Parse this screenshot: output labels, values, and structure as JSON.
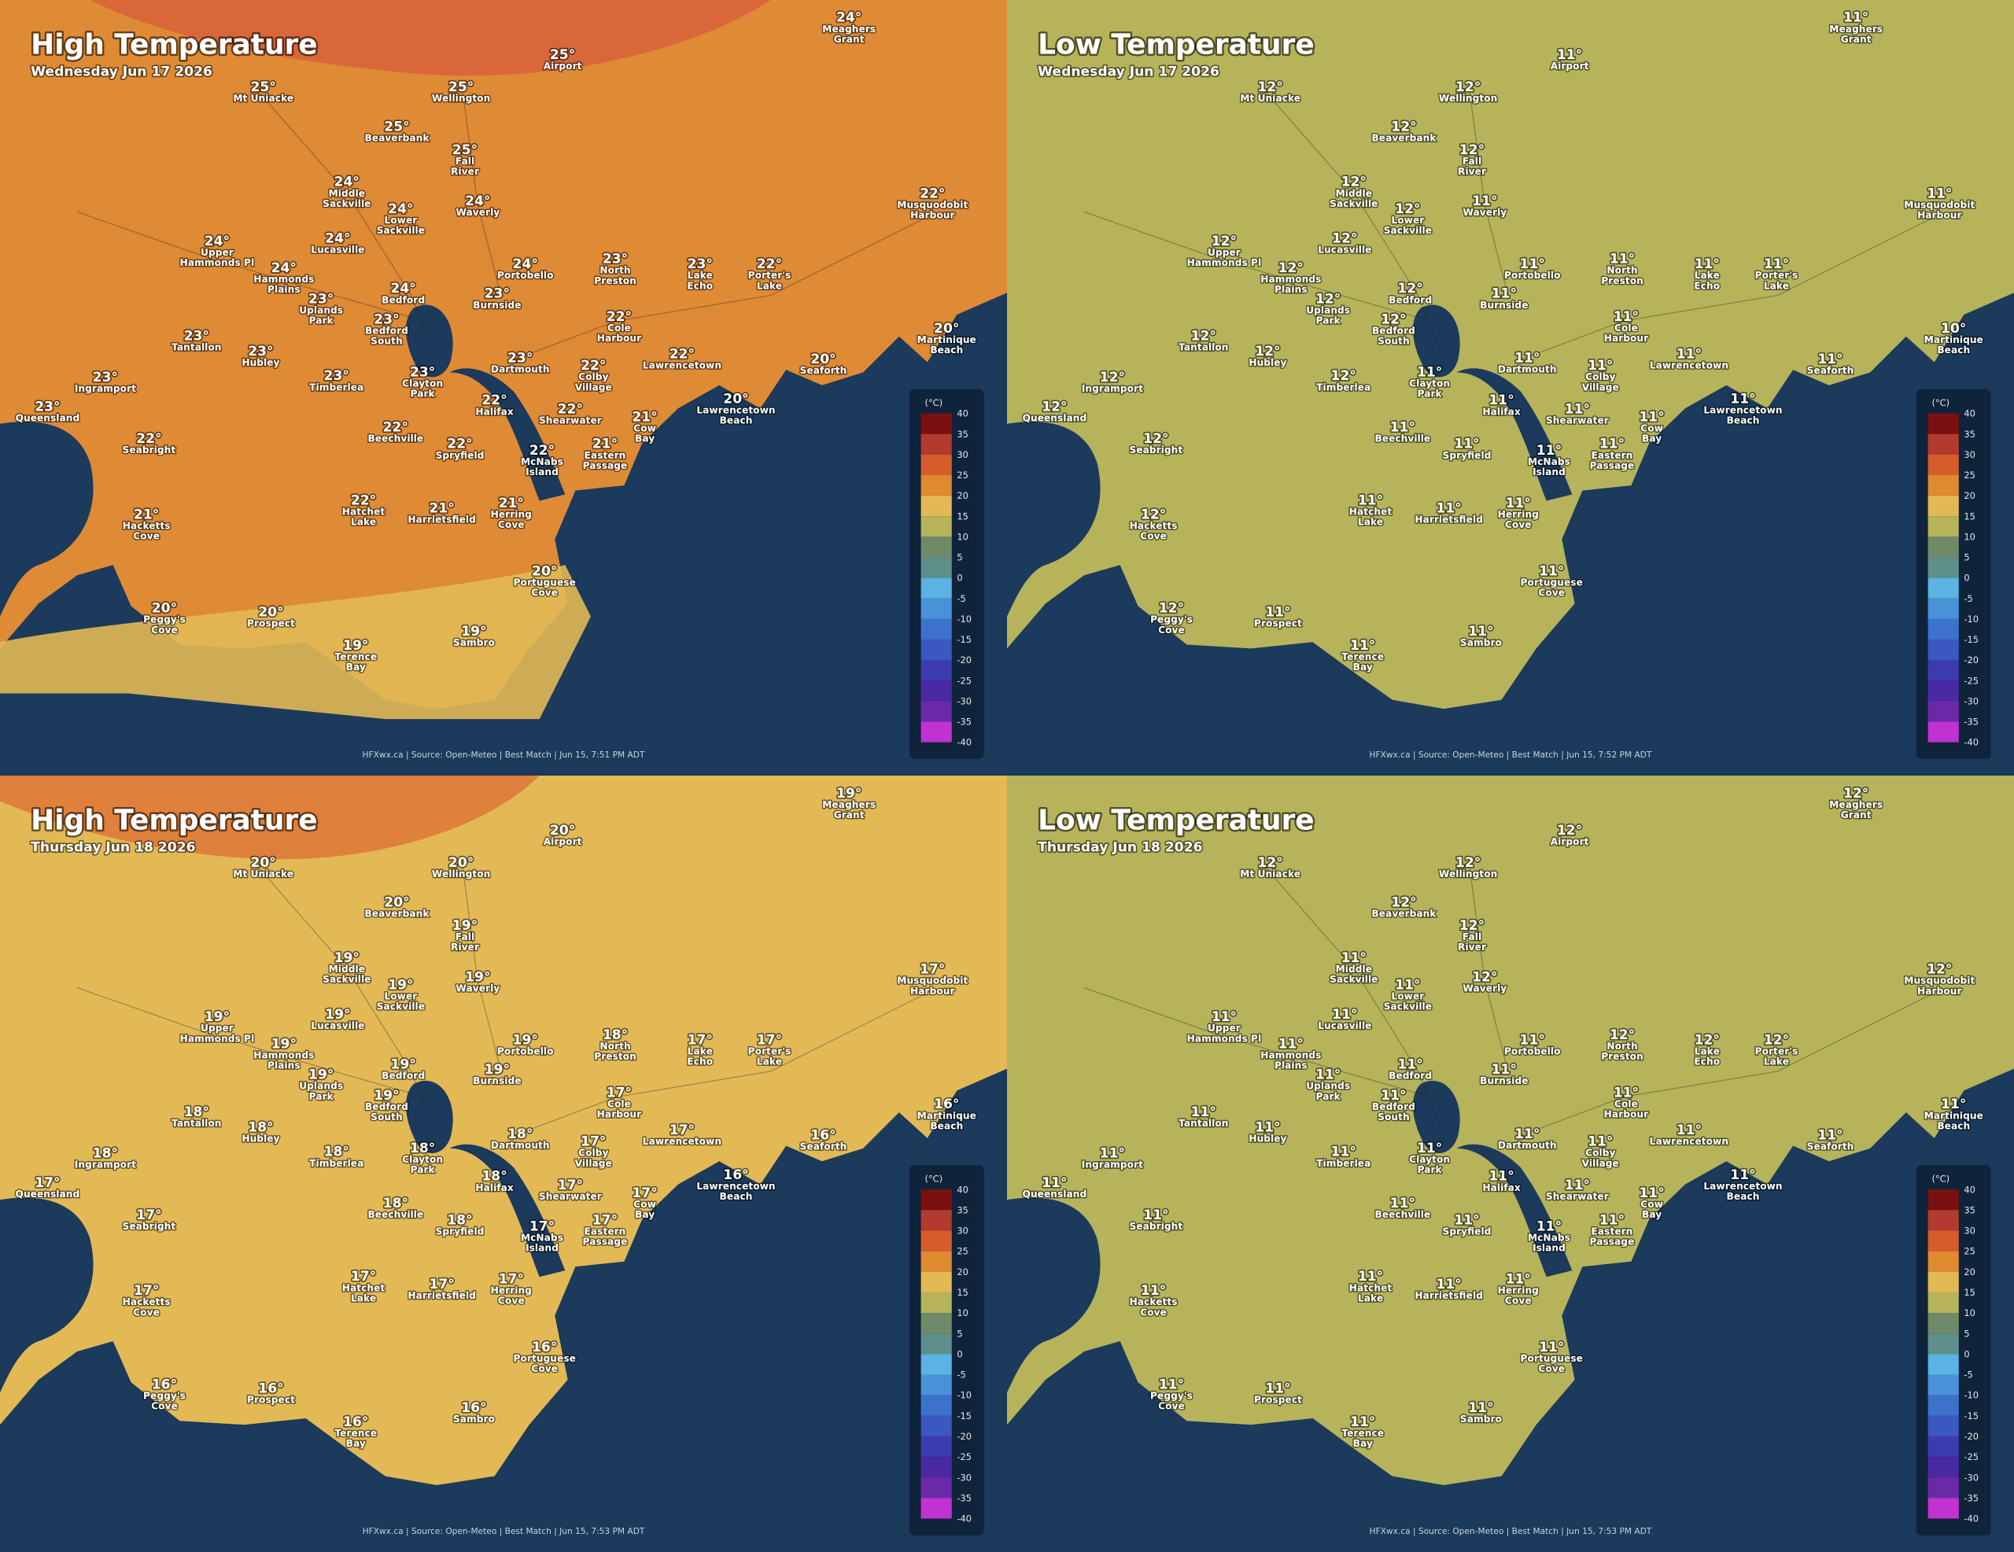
{
  "panels": [
    {
      "title": "High Temperature",
      "date": "Wednesday Jun 17 2026",
      "footer": "HFXwx.ca | Source: Open-Meteo | Best Match | Jun 15, 7:51 PM ADT",
      "land_color": "#df8a34",
      "temps": [
        "24°",
        "25°",
        "25°",
        "25°",
        "25°",
        "25°",
        "24°",
        "24°",
        "24°",
        "22°",
        "24°",
        "24°",
        "24°",
        "23°",
        "23°",
        "22°",
        "24°",
        "24°",
        "23°",
        "23°",
        "22°",
        "23°",
        "20°",
        "23°",
        "23°",
        "23°",
        "22°",
        "20°",
        "23°",
        "23°",
        "23°",
        "22°",
        "23°",
        "22°",
        "20°",
        "22°",
        "21°",
        "22°",
        "22°",
        "22°",
        "22°",
        "21°",
        "22°",
        "21°",
        "21°",
        "21°",
        "20°",
        "20°",
        "20°",
        "19°",
        "19°"
      ]
    },
    {
      "title": "Low Temperature",
      "date": "Wednesday Jun 17 2026",
      "footer": "HFXwx.ca | Source: Open-Meteo | Best Match | Jun 15, 7:52 PM ADT",
      "land_color": "#b6b35a",
      "temps": [
        "11°",
        "11°",
        "12°",
        "12°",
        "12°",
        "12°",
        "12°",
        "11°",
        "12°",
        "11°",
        "12°",
        "12°",
        "11°",
        "11°",
        "11°",
        "11°",
        "12°",
        "12°",
        "12°",
        "11°",
        "11°",
        "12°",
        "10°",
        "12°",
        "12°",
        "11°",
        "11°",
        "11°",
        "12°",
        "12°",
        "11°",
        "11°",
        "12°",
        "11°",
        "11°",
        "11°",
        "11°",
        "11°",
        "12°",
        "11°",
        "11°",
        "11°",
        "11°",
        "11°",
        "11°",
        "12°",
        "11°",
        "12°",
        "11°",
        "11°",
        "11°"
      ]
    },
    {
      "title": "High Temperature",
      "date": "Thursday Jun 18 2026",
      "footer": "HFXwx.ca | Source: Open-Meteo | Best Match | Jun 15, 7:53 PM ADT",
      "land_color": "#e2b955",
      "temps": [
        "19°",
        "20°",
        "20°",
        "20°",
        "20°",
        "19°",
        "19°",
        "19°",
        "19°",
        "17°",
        "19°",
        "19°",
        "19°",
        "18°",
        "17°",
        "17°",
        "19°",
        "19°",
        "19°",
        "19°",
        "17°",
        "19°",
        "16°",
        "18°",
        "18°",
        "18°",
        "17°",
        "16°",
        "18°",
        "18°",
        "18°",
        "17°",
        "17°",
        "18°",
        "16°",
        "17°",
        "17°",
        "18°",
        "17°",
        "18°",
        "17°",
        "17°",
        "17°",
        "17°",
        "17°",
        "17°",
        "16°",
        "16°",
        "16°",
        "16°",
        "16°"
      ]
    },
    {
      "title": "Low Temperature",
      "date": "Thursday Jun 18 2026",
      "footer": "HFXwx.ca | Source: Open-Meteo | Best Match | Jun 15, 7:53 PM ADT",
      "land_color": "#b6b35a",
      "temps": [
        "12°",
        "12°",
        "12°",
        "12°",
        "12°",
        "12°",
        "11°",
        "12°",
        "11°",
        "12°",
        "11°",
        "11°",
        "11°",
        "12°",
        "12°",
        "12°",
        "11°",
        "11°",
        "11°",
        "11°",
        "11°",
        "11°",
        "11°",
        "11°",
        "11°",
        "11°",
        "11°",
        "11°",
        "11°",
        "11°",
        "11°",
        "11°",
        "11°",
        "11°",
        "11°",
        "11°",
        "11°",
        "11°",
        "11°",
        "11°",
        "11°",
        "11°",
        "11°",
        "11°",
        "11°",
        "11°",
        "11°",
        "11°",
        "11°",
        "11°",
        "11°"
      ]
    }
  ],
  "places": [
    {
      "name": [
        "Meaghers",
        "Grant"
      ]
    },
    {
      "name": [
        "Airport"
      ]
    },
    {
      "name": [
        "Mt Uniacke"
      ]
    },
    {
      "name": [
        "Wellington"
      ]
    },
    {
      "name": [
        "Beaverbank"
      ]
    },
    {
      "name": [
        "Fall",
        "River"
      ]
    },
    {
      "name": [
        "Middle",
        "Sackville"
      ]
    },
    {
      "name": [
        "Waverly"
      ]
    },
    {
      "name": [
        "Lower",
        "Sackville"
      ]
    },
    {
      "name": [
        "Musquodobit",
        "Harbour"
      ]
    },
    {
      "name": [
        "Upper",
        "Hammonds Pl"
      ]
    },
    {
      "name": [
        "Lucasville"
      ]
    },
    {
      "name": [
        "Portobello"
      ]
    },
    {
      "name": [
        "North",
        "Preston"
      ]
    },
    {
      "name": [
        "Lake",
        "Echo"
      ]
    },
    {
      "name": [
        "Porter's",
        "Lake"
      ]
    },
    {
      "name": [
        "Hammonds",
        "Plains"
      ]
    },
    {
      "name": [
        "Bedford"
      ]
    },
    {
      "name": [
        "Uplands",
        "Park"
      ]
    },
    {
      "name": [
        "Burnside"
      ]
    },
    {
      "name": [
        "Cole",
        "Harbour"
      ]
    },
    {
      "name": [
        "Bedford",
        "South"
      ]
    },
    {
      "name": [
        "Martinique",
        "Beach"
      ]
    },
    {
      "name": [
        "Tantallon"
      ]
    },
    {
      "name": [
        "Hubley"
      ]
    },
    {
      "name": [
        "Dartmouth"
      ]
    },
    {
      "name": [
        "Lawrencetown"
      ]
    },
    {
      "name": [
        "Seaforth"
      ]
    },
    {
      "name": [
        "Ingramport"
      ]
    },
    {
      "name": [
        "Timberlea"
      ]
    },
    {
      "name": [
        "Clayton",
        "Park"
      ]
    },
    {
      "name": [
        "Colby",
        "Village"
      ]
    },
    {
      "name": [
        "Queensland"
      ]
    },
    {
      "name": [
        "Halifax"
      ]
    },
    {
      "name": [
        "Lawrencetown",
        "Beach"
      ]
    },
    {
      "name": [
        "Shearwater"
      ]
    },
    {
      "name": [
        "Cow",
        "Bay"
      ]
    },
    {
      "name": [
        "Beechville"
      ]
    },
    {
      "name": [
        "Seabright"
      ]
    },
    {
      "name": [
        "Spryfield"
      ]
    },
    {
      "name": [
        "McNabs",
        "Island"
      ]
    },
    {
      "name": [
        "Eastern",
        "Passage"
      ]
    },
    {
      "name": [
        "Hatchet",
        "Lake"
      ]
    },
    {
      "name": [
        "Harrietsfield"
      ]
    },
    {
      "name": [
        "Herring",
        "Cove"
      ]
    },
    {
      "name": [
        "Hacketts",
        "Cove"
      ]
    },
    {
      "name": [
        "Portuguese",
        "Cove"
      ]
    },
    {
      "name": [
        "Peggy's",
        "Cove"
      ]
    },
    {
      "name": [
        "Prospect"
      ]
    },
    {
      "name": [
        "Terence",
        "Bay"
      ]
    },
    {
      "name": [
        "Sambro"
      ]
    }
  ],
  "legend": {
    "title": "(°C)",
    "ticks": [
      40,
      35,
      30,
      25,
      20,
      15,
      10,
      5,
      0,
      -5,
      -10,
      -15,
      -20,
      -25,
      -30,
      -35,
      -40
    ],
    "colors": [
      "#7a1010",
      "#b33a2e",
      "#d85b2a",
      "#e08a30",
      "#e2b955",
      "#b6b35a",
      "#6f8a68",
      "#5e8f8a",
      "#5ab3e2",
      "#4a92d8",
      "#3d72cc",
      "#3a58c0",
      "#3c3cb0",
      "#4a2aa2",
      "#6a2aa8",
      "#c232d2"
    ]
  }
}
